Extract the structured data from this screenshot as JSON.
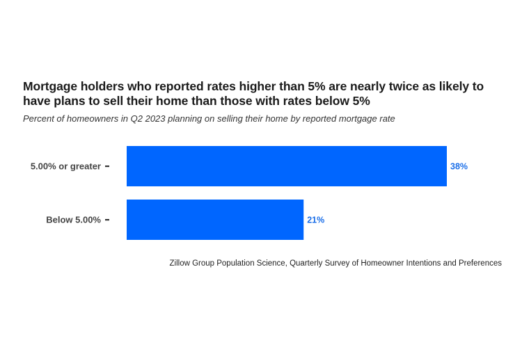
{
  "chart_data": {
    "type": "bar",
    "orientation": "horizontal",
    "title": "Mortgage holders who reported rates higher than 5% are nearly twice as likely to have plans to sell their home than those with rates below 5%",
    "subtitle": "Percent of homeowners in Q2 2023 planning on selling their home by reported mortgage rate",
    "categories": [
      "5.00% or greater",
      "Below 5.00%"
    ],
    "values": [
      38,
      21
    ],
    "value_labels": [
      "38%",
      "21%"
    ],
    "unit": "%",
    "xlabel": "",
    "ylabel": "",
    "xlim": [
      0,
      38
    ],
    "grid": false,
    "legend": null,
    "source": "Zillow Group Population Science, Quarterly Survey of Homeowner Intentions and Preferences",
    "colors": {
      "bar": "#0066FF",
      "value_label": "#1a6ee8",
      "category_label": "#444444"
    }
  }
}
